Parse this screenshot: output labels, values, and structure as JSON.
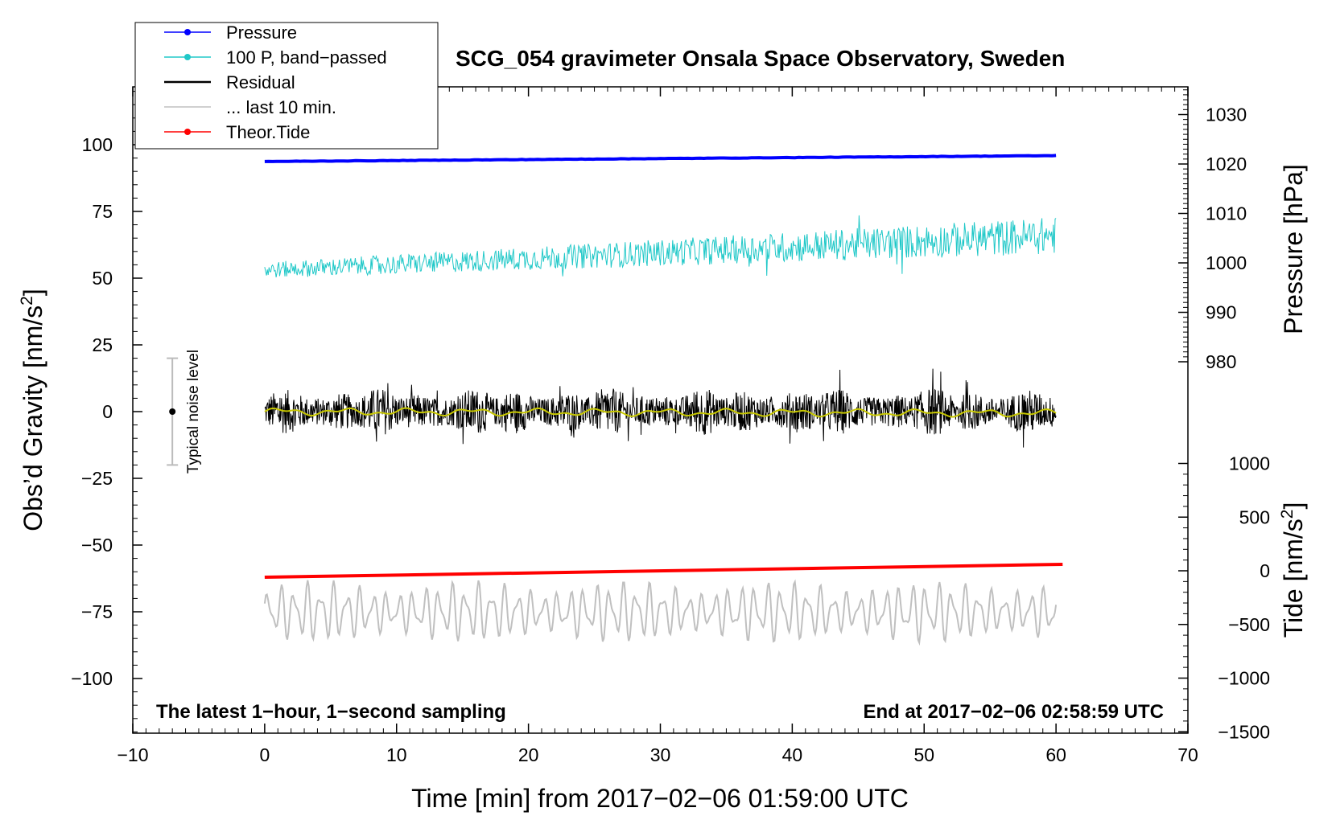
{
  "chart_data": {
    "type": "line",
    "title": "SCG_054 gravimeter Onsala Space Observatory, Sweden",
    "xlabel": "Time [min] from 2017−02−06 01:59:00 UTC",
    "ylabel_left_main": "Obs’d Gravity [nm/s",
    "ylabel_left_sup": "2",
    "ylabel_left_close": "]",
    "ylabel_right_top": "Pressure [hPa]",
    "ylabel_right_bottom_main": "Tide [nm/s",
    "ylabel_right_bottom_sup": "2",
    "ylabel_right_bottom_close": "]",
    "xlim": [
      -10,
      70
    ],
    "ylim_left": [
      -120,
      120
    ],
    "pressure_axis_range": [
      980,
      1030
    ],
    "tide_axis_range": [
      -1500,
      1000
    ],
    "x_ticks": [
      -10,
      0,
      10,
      20,
      30,
      40,
      50,
      60,
      70
    ],
    "x_tick_labels": [
      "−10",
      "0",
      "10",
      "20",
      "30",
      "40",
      "50",
      "60",
      "70"
    ],
    "y_left_ticks": [
      100,
      75,
      50,
      25,
      0,
      -25,
      -50,
      -75,
      -100
    ],
    "y_left_tick_labels": [
      "100",
      "75",
      "50",
      "25",
      "0",
      "−25",
      "−50",
      "−75",
      "−100"
    ],
    "y_pressure_ticks": [
      1030,
      1020,
      1010,
      1000,
      990,
      980
    ],
    "y_pressure_tick_labels": [
      "1030",
      "1020",
      "1010",
      "1000",
      "990",
      "980"
    ],
    "y_tide_ticks": [
      1000,
      500,
      0,
      -500,
      -1000,
      -1500
    ],
    "y_tide_tick_labels": [
      "1000",
      "500",
      "0",
      "−500",
      "−1000",
      "−1500"
    ],
    "legend": [
      {
        "label": "Pressure",
        "color": "#0000ff",
        "marker": true
      },
      {
        "label": "100 P, band−passed",
        "color": "#20c8c8",
        "marker": true
      },
      {
        "label": "Residual",
        "color": "#000000",
        "marker": false
      },
      {
        "label": "... last 10 min.",
        "color": "#c0c0c0",
        "marker": false
      },
      {
        "label": "Theor.Tide",
        "color": "#ff0000",
        "marker": true
      }
    ],
    "series": [
      {
        "name": "Pressure",
        "color": "#0000ff",
        "axis": "pressure",
        "x_range": [
          0,
          60
        ],
        "start": 1020.5,
        "end": 1021.7
      },
      {
        "name": "100 P, band−passed",
        "color": "#20c8c8",
        "axis": "left",
        "x_range": [
          0,
          60
        ],
        "start_mean": 53,
        "end_mean": 66,
        "amplitude_start": 3,
        "amplitude_end": 7
      },
      {
        "name": "Residual",
        "color": "#000000",
        "axis": "left",
        "x_range": [
          0,
          60
        ],
        "mean": 0,
        "amplitude": 9
      },
      {
        "name": "Residual smoothed",
        "color": "#c8c800",
        "axis": "left",
        "x_range": [
          0,
          60
        ],
        "mean": 0,
        "amplitude": 1.5
      },
      {
        "name": "Theor.Tide",
        "color": "#ff0000",
        "axis": "tide",
        "x_range": [
          0,
          60.5
        ],
        "start": -60,
        "end": 60
      },
      {
        "name": "... last 10 min.",
        "color": "#c0c0c0",
        "axis": "left",
        "x_range": [
          0,
          60
        ],
        "mean": -75,
        "amplitude": 12
      }
    ],
    "noise_level": {
      "label": "Typical noise level",
      "x": -7,
      "center": 0,
      "range": [
        -20,
        20
      ]
    },
    "annotation_left": "The latest 1−hour, 1−second sampling",
    "annotation_right": "End at 2017−02−06 02:58:59 UTC"
  }
}
